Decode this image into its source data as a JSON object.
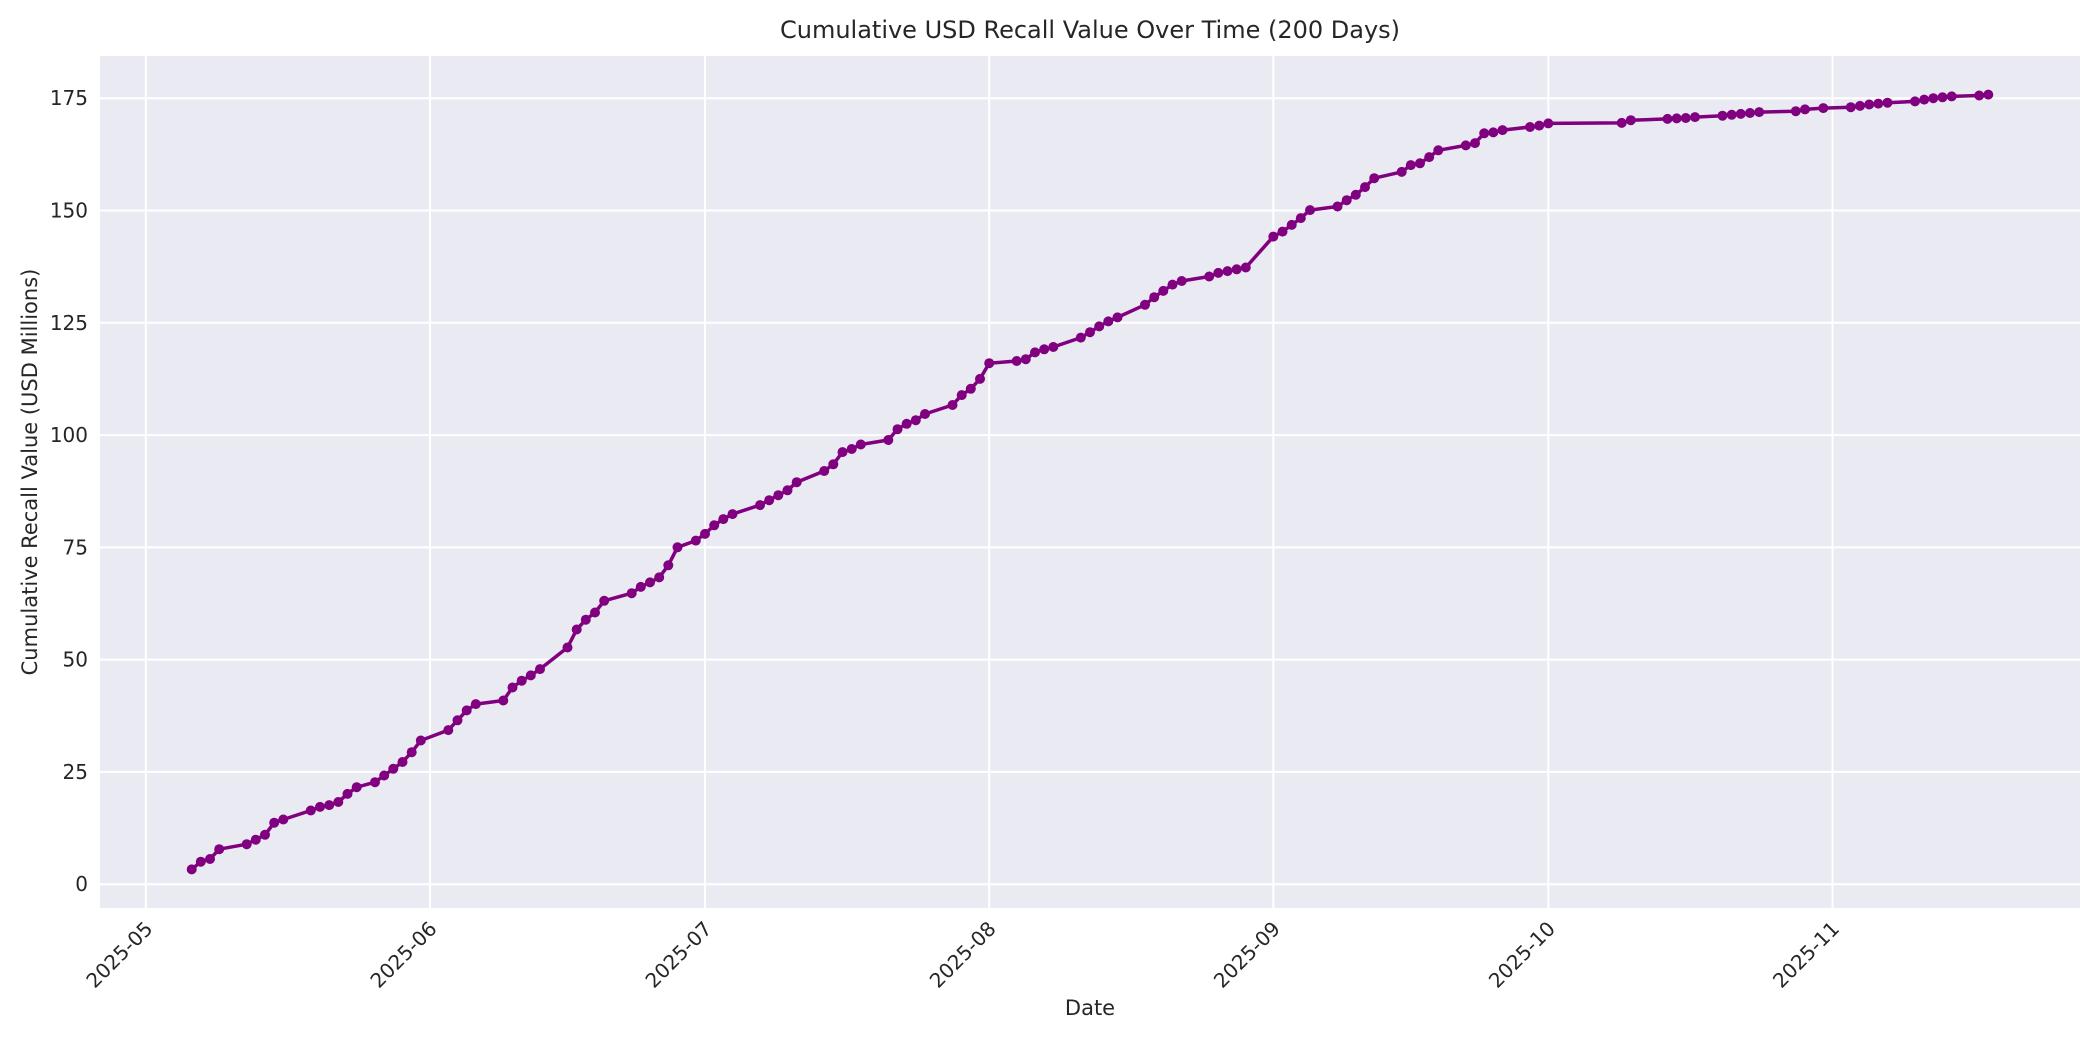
{
  "figure": {
    "title": "Cumulative USD Recall Value Over Time (200 Days)",
    "background_color": "#ffffff"
  },
  "chart_data": {
    "type": "line",
    "title": "Cumulative USD Recall Value Over Time (200 Days)",
    "xlabel": "Date",
    "ylabel": "Cumulative Recall Value (USD Millions)",
    "legend": "none",
    "grid": true,
    "plot_background_color": "#eaeaf2",
    "grid_color": "#ffffff",
    "line_color": "#800080",
    "marker": "circle",
    "text_color": "#262626",
    "y_ticks": [
      0,
      25,
      50,
      75,
      100,
      125,
      150,
      175
    ],
    "ylim": [
      -5.3,
      184.4
    ],
    "xlim": [
      "2025-04-26",
      "2025-11-28"
    ],
    "x_ticks": [
      {
        "label": "2025-05",
        "date": "2025-05-01"
      },
      {
        "label": "2025-06",
        "date": "2025-06-01"
      },
      {
        "label": "2025-07",
        "date": "2025-07-01"
      },
      {
        "label": "2025-08",
        "date": "2025-08-01"
      },
      {
        "label": "2025-09",
        "date": "2025-09-01"
      },
      {
        "label": "2025-10",
        "date": "2025-10-01"
      },
      {
        "label": "2025-11",
        "date": "2025-11-01"
      }
    ],
    "series": [
      {
        "name": "Cumulative Recall Value",
        "dates": [
          "2025-05-06",
          "2025-05-07",
          "2025-05-08",
          "2025-05-09",
          "2025-05-12",
          "2025-05-13",
          "2025-05-14",
          "2025-05-15",
          "2025-05-16",
          "2025-05-19",
          "2025-05-20",
          "2025-05-21",
          "2025-05-22",
          "2025-05-23",
          "2025-05-24",
          "2025-05-26",
          "2025-05-27",
          "2025-05-28",
          "2025-05-29",
          "2025-05-30",
          "2025-05-31",
          "2025-06-03",
          "2025-06-04",
          "2025-06-05",
          "2025-06-06",
          "2025-06-09",
          "2025-06-10",
          "2025-06-11",
          "2025-06-12",
          "2025-06-13",
          "2025-06-16",
          "2025-06-17",
          "2025-06-18",
          "2025-06-19",
          "2025-06-20",
          "2025-06-23",
          "2025-06-24",
          "2025-06-25",
          "2025-06-26",
          "2025-06-27",
          "2025-06-28",
          "2025-06-30",
          "2025-07-01",
          "2025-07-02",
          "2025-07-03",
          "2025-07-04",
          "2025-07-07",
          "2025-07-08",
          "2025-07-09",
          "2025-07-10",
          "2025-07-11",
          "2025-07-14",
          "2025-07-15",
          "2025-07-16",
          "2025-07-17",
          "2025-07-18",
          "2025-07-21",
          "2025-07-22",
          "2025-07-23",
          "2025-07-24",
          "2025-07-25",
          "2025-07-28",
          "2025-07-29",
          "2025-07-30",
          "2025-07-31",
          "2025-08-01",
          "2025-08-04",
          "2025-08-05",
          "2025-08-06",
          "2025-08-07",
          "2025-08-08",
          "2025-08-11",
          "2025-08-12",
          "2025-08-13",
          "2025-08-14",
          "2025-08-15",
          "2025-08-18",
          "2025-08-19",
          "2025-08-20",
          "2025-08-21",
          "2025-08-22",
          "2025-08-25",
          "2025-08-26",
          "2025-08-27",
          "2025-08-28",
          "2025-08-29",
          "2025-09-01",
          "2025-09-02",
          "2025-09-03",
          "2025-09-04",
          "2025-09-05",
          "2025-09-08",
          "2025-09-09",
          "2025-09-10",
          "2025-09-11",
          "2025-09-12",
          "2025-09-15",
          "2025-09-16",
          "2025-09-17",
          "2025-09-18",
          "2025-09-19",
          "2025-09-22",
          "2025-09-23",
          "2025-09-24",
          "2025-09-25",
          "2025-09-26",
          "2025-09-29",
          "2025-09-30",
          "2025-10-01",
          "2025-10-09",
          "2025-10-10",
          "2025-10-14",
          "2025-10-15",
          "2025-10-16",
          "2025-10-17",
          "2025-10-20",
          "2025-10-21",
          "2025-10-22",
          "2025-10-23",
          "2025-10-24",
          "2025-10-28",
          "2025-10-29",
          "2025-10-31",
          "2025-11-03",
          "2025-11-04",
          "2025-11-05",
          "2025-11-06",
          "2025-11-07",
          "2025-11-10",
          "2025-11-11",
          "2025-11-12",
          "2025-11-13",
          "2025-11-14",
          "2025-11-17",
          "2025-11-18"
        ],
        "values": [
          3.3,
          5.0,
          5.6,
          7.8,
          8.9,
          9.9,
          11.0,
          13.7,
          14.4,
          16.4,
          17.2,
          17.6,
          18.3,
          20.1,
          21.6,
          22.7,
          24.2,
          25.7,
          27.2,
          29.4,
          32.0,
          34.3,
          36.5,
          38.7,
          40.1,
          40.9,
          43.8,
          45.3,
          46.5,
          47.9,
          52.7,
          56.7,
          58.9,
          60.5,
          63.1,
          64.8,
          66.2,
          67.2,
          68.3,
          71.0,
          75.0,
          76.5,
          78.0,
          79.9,
          81.3,
          82.4,
          84.4,
          85.5,
          86.6,
          87.7,
          89.5,
          92.0,
          93.5,
          96.2,
          96.9,
          97.9,
          98.9,
          101.3,
          102.5,
          103.3,
          104.7,
          106.7,
          108.9,
          110.3,
          112.5,
          116.0,
          116.5,
          116.9,
          118.4,
          119.1,
          119.6,
          121.7,
          122.9,
          124.2,
          125.3,
          126.2,
          129.0,
          130.7,
          132.1,
          133.5,
          134.3,
          135.3,
          136.1,
          136.5,
          136.9,
          137.3,
          144.2,
          145.3,
          146.8,
          148.3,
          150.1,
          150.9,
          152.3,
          153.5,
          155.2,
          157.2,
          158.6,
          160.1,
          160.5,
          161.9,
          163.4,
          164.5,
          165.0,
          167.2,
          167.4,
          167.9,
          168.6,
          168.9,
          169.4,
          169.5,
          170.1,
          170.4,
          170.5,
          170.6,
          170.8,
          171.1,
          171.3,
          171.5,
          171.7,
          171.9,
          172.1,
          172.5,
          172.8,
          173.0,
          173.3,
          173.6,
          173.8,
          174.0,
          174.3,
          174.7,
          175.0,
          175.2,
          175.4,
          175.6,
          175.8
        ]
      }
    ]
  }
}
